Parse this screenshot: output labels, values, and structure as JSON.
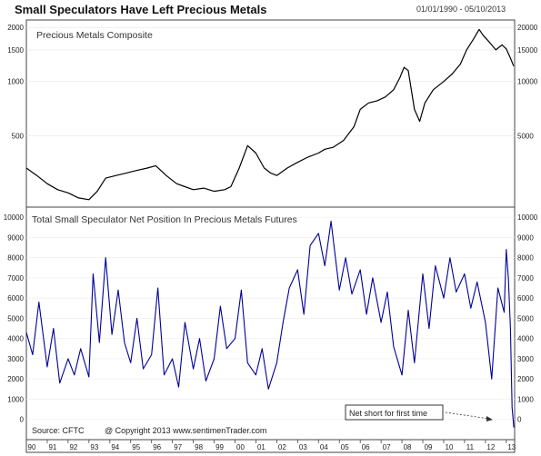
{
  "header": {
    "title": "Small Speculators Have Left Precious Metals",
    "date_range": "01/01/1990 - 05/10/2013"
  },
  "chart_data": [
    {
      "type": "line",
      "title": "Precious Metals Composite",
      "y_scale": "log",
      "y_ticks": [
        500,
        1000,
        1500,
        2000
      ],
      "y_tick_labels_left": [
        "500",
        "1000",
        "1500",
        "2000"
      ],
      "y_tick_labels_right": [
        "5000",
        "10000",
        "15000",
        "20000"
      ],
      "ylim": [
        200,
        2200
      ],
      "series": [
        {
          "color": "#000000",
          "x": [
            1990.0,
            1990.5,
            1991.0,
            1991.5,
            1992.0,
            1992.5,
            1993.0,
            1993.4,
            1993.8,
            1994.3,
            1994.8,
            1995.3,
            1995.8,
            1996.2,
            1996.7,
            1997.2,
            1997.6,
            1998.0,
            1998.5,
            1999.0,
            1999.5,
            1999.8,
            2000.2,
            2000.6,
            2001.0,
            2001.4,
            2001.7,
            2002.0,
            2002.5,
            2003.0,
            2003.5,
            2004.0,
            2004.3,
            2004.7,
            2005.2,
            2005.7,
            2006.0,
            2006.4,
            2006.8,
            2007.2,
            2007.6,
            2007.9,
            2008.1,
            2008.3,
            2008.6,
            2008.85,
            2009.1,
            2009.5,
            2010.0,
            2010.4,
            2010.8,
            2011.1,
            2011.4,
            2011.7,
            2011.9,
            2012.2,
            2012.5,
            2012.8,
            2013.0,
            2013.2,
            2013.35
          ],
          "values": [
            330,
            300,
            270,
            250,
            240,
            225,
            220,
            245,
            290,
            300,
            310,
            320,
            330,
            340,
            300,
            270,
            260,
            250,
            255,
            245,
            250,
            260,
            330,
            440,
            400,
            330,
            310,
            300,
            330,
            355,
            380,
            400,
            420,
            430,
            470,
            560,
            700,
            760,
            780,
            820,
            900,
            1050,
            1200,
            1150,
            700,
            600,
            760,
            900,
            1000,
            1100,
            1250,
            1500,
            1700,
            1950,
            1800,
            1650,
            1500,
            1600,
            1520,
            1350,
            1220
          ]
        }
      ]
    },
    {
      "type": "line",
      "title": "Total Small Speculator Net Position In Precious Metals Futures",
      "y_ticks": [
        0,
        1000,
        2000,
        3000,
        4000,
        5000,
        6000,
        7000,
        8000,
        9000,
        10000
      ],
      "y_tick_labels": [
        "0",
        "1000",
        "2000",
        "3000",
        "4000",
        "5000",
        "6000",
        "7000",
        "8000",
        "9000",
        "10000"
      ],
      "ylim": [
        -1000,
        10500
      ],
      "x_tick_labels": [
        "90",
        "91",
        "92",
        "93",
        "94",
        "95",
        "96",
        "97",
        "98",
        "99",
        "00",
        "01",
        "02",
        "03",
        "04",
        "05",
        "06",
        "07",
        "08",
        "09",
        "10",
        "11",
        "12",
        "13"
      ],
      "source": "Source: CFTC",
      "copyright": "@ Copyright 2013  www.sentimenTrader.com",
      "annotation": "Net short for first time",
      "series": [
        {
          "color": "#000099",
          "x": [
            1990.0,
            1990.3,
            1990.6,
            1991.0,
            1991.3,
            1991.6,
            1992.0,
            1992.3,
            1992.6,
            1993.0,
            1993.2,
            1993.5,
            1993.8,
            1994.1,
            1994.4,
            1994.7,
            1995.0,
            1995.3,
            1995.6,
            1996.0,
            1996.3,
            1996.6,
            1997.0,
            1997.3,
            1997.6,
            1998.0,
            1998.3,
            1998.6,
            1999.0,
            1999.3,
            1999.6,
            2000.0,
            2000.3,
            2000.6,
            2001.0,
            2001.3,
            2001.6,
            2002.0,
            2002.3,
            2002.6,
            2003.0,
            2003.3,
            2003.6,
            2004.0,
            2004.3,
            2004.6,
            2005.0,
            2005.3,
            2005.6,
            2006.0,
            2006.3,
            2006.6,
            2007.0,
            2007.3,
            2007.6,
            2008.0,
            2008.3,
            2008.6,
            2009.0,
            2009.3,
            2009.6,
            2010.0,
            2010.3,
            2010.6,
            2011.0,
            2011.3,
            2011.6,
            2012.0,
            2012.3,
            2012.6,
            2012.9,
            2013.0,
            2013.1,
            2013.2,
            2013.28,
            2013.36
          ],
          "values": [
            4300,
            3200,
            5800,
            2600,
            4500,
            1800,
            3000,
            2200,
            3500,
            2100,
            7200,
            3800,
            8000,
            4200,
            6400,
            3800,
            2800,
            5000,
            2500,
            3200,
            6500,
            2200,
            3000,
            1600,
            4800,
            2500,
            4000,
            1900,
            3000,
            5600,
            3500,
            4000,
            6400,
            2800,
            2200,
            3500,
            1500,
            2800,
            4800,
            6500,
            7400,
            5200,
            8600,
            9200,
            7600,
            9800,
            6400,
            8000,
            6200,
            7400,
            5200,
            7000,
            4800,
            6300,
            3600,
            2200,
            5400,
            2800,
            7200,
            4500,
            7600,
            6000,
            8000,
            6300,
            7200,
            5500,
            6800,
            4800,
            2000,
            6500,
            5300,
            8400,
            7000,
            4500,
            600,
            -400
          ]
        }
      ]
    }
  ]
}
